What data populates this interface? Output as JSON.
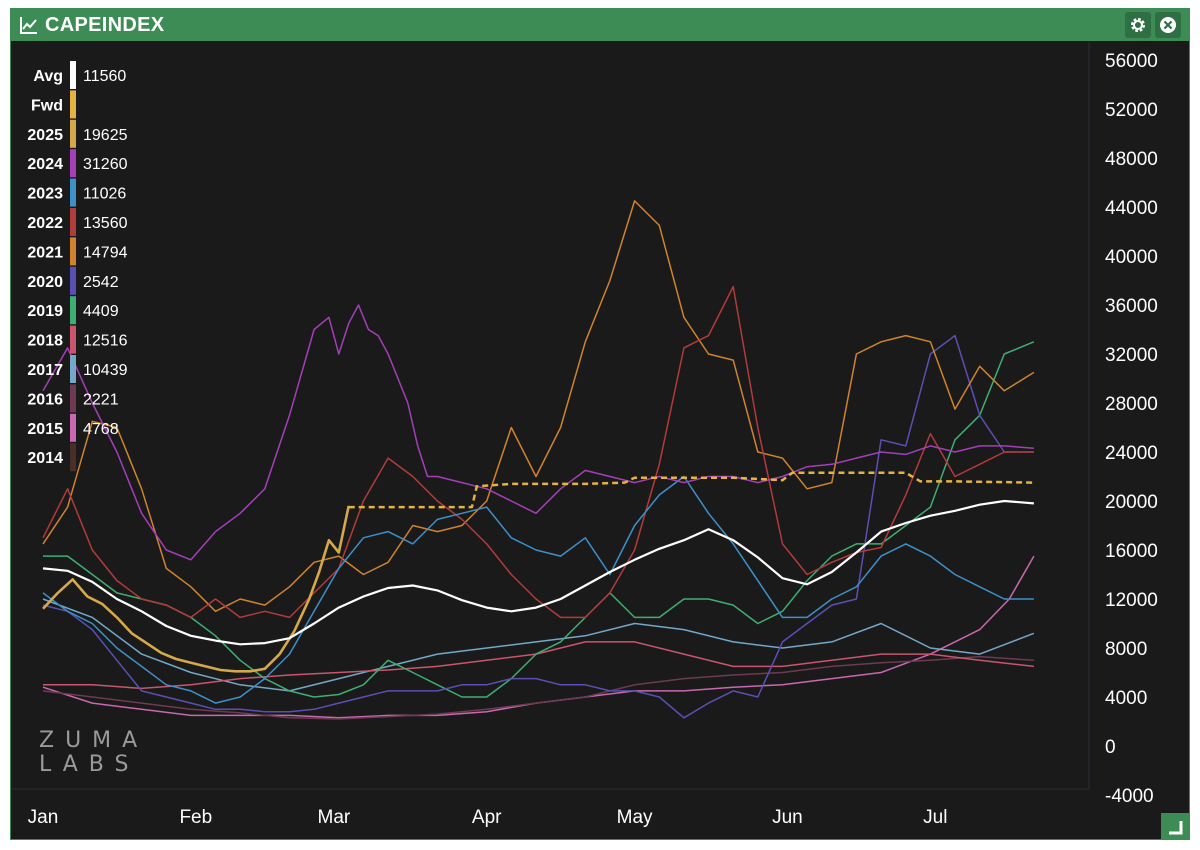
{
  "window": {
    "title": "CAPEINDEX",
    "brand_line1": "ZUMA",
    "brand_line2": "LABS",
    "accent_color": "#3d8c55",
    "icons": [
      "line-chart-icon",
      "gear-icon",
      "close-icon",
      "resize-grip-icon"
    ]
  },
  "chart_data": {
    "type": "line",
    "title": "",
    "xlabel": "",
    "ylabel": "",
    "ylim": [
      -4000,
      58000
    ],
    "y_ticks": [
      "56000",
      "52000",
      "48000",
      "44000",
      "40000",
      "36000",
      "32000",
      "28000",
      "24000",
      "20000",
      "16000",
      "12000",
      "8000",
      "4000",
      "0",
      "-4000"
    ],
    "y_tick_values": [
      56000,
      52000,
      48000,
      44000,
      40000,
      36000,
      32000,
      28000,
      24000,
      20000,
      16000,
      12000,
      8000,
      4000,
      0,
      -4000
    ],
    "x_ticks": [
      "Jan",
      "Feb",
      "Mar",
      "Apr",
      "May",
      "Jun",
      "Jul"
    ],
    "x_tick_days": [
      0,
      31,
      59,
      90,
      120,
      151,
      181
    ],
    "xlim_days": [
      0,
      201
    ],
    "grid": false,
    "legend_placement": "top-left",
    "series": [
      {
        "name": "Avg",
        "value": "11560",
        "color": "#ffffff",
        "width": 2.2,
        "x": [
          0,
          5,
          10,
          15,
          20,
          25,
          30,
          35,
          40,
          45,
          50,
          55,
          60,
          65,
          70,
          75,
          80,
          85,
          90,
          95,
          100,
          105,
          110,
          115,
          120,
          125,
          130,
          135,
          140,
          145,
          150,
          155,
          160,
          165,
          170,
          175,
          180,
          185,
          190,
          195,
          201
        ],
        "y": [
          14500,
          14300,
          13400,
          12000,
          11000,
          9800,
          9000,
          8600,
          8300,
          8400,
          8800,
          10000,
          11300,
          12200,
          12900,
          13100,
          12700,
          11900,
          11300,
          11000,
          11300,
          12000,
          13100,
          14200,
          15200,
          16100,
          16800,
          17700,
          16800,
          15400,
          13700,
          13200,
          14200,
          15800,
          17500,
          18200,
          18800,
          19200,
          19700,
          20000,
          19800
        ]
      },
      {
        "name": "Fwd",
        "value": "",
        "color": "#e6b340",
        "width": 2.5,
        "dashed": true,
        "x": [
          62,
          75,
          87,
          88,
          95,
          110,
          118,
          120,
          140,
          150,
          152,
          175,
          178,
          185,
          201
        ],
        "y": [
          19500,
          19500,
          19500,
          21200,
          21400,
          21400,
          21500,
          21900,
          21900,
          21700,
          22300,
          22300,
          21600,
          21600,
          21500
        ]
      },
      {
        "name": "2025",
        "value": "19625",
        "color": "#d5a84a",
        "width": 2.6,
        "x": [
          0,
          3,
          6,
          9,
          12,
          15,
          18,
          21,
          24,
          27,
          30,
          33,
          36,
          39,
          42,
          45,
          48,
          51,
          54,
          56,
          58,
          60,
          62
        ],
        "y": [
          11200,
          12500,
          13600,
          12200,
          11600,
          10500,
          9200,
          8400,
          7600,
          7100,
          6800,
          6500,
          6200,
          6100,
          6100,
          6300,
          7500,
          9400,
          12000,
          14200,
          16800,
          15800,
          19600
        ]
      },
      {
        "name": "2024",
        "value": "31260",
        "color": "#a43fb8",
        "width": 1.5,
        "x": [
          0,
          5,
          10,
          15,
          20,
          25,
          30,
          35,
          40,
          45,
          50,
          55,
          58,
          60,
          62,
          64,
          66,
          68,
          70,
          72,
          74,
          76,
          78,
          80,
          85,
          90,
          95,
          100,
          105,
          110,
          115,
          120,
          125,
          130,
          135,
          140,
          145,
          150,
          155,
          160,
          165,
          170,
          175,
          180,
          185,
          190,
          195,
          201
        ],
        "y": [
          29000,
          32500,
          28000,
          24000,
          19000,
          16000,
          15200,
          17500,
          19000,
          21000,
          27000,
          34000,
          35000,
          32000,
          34500,
          36000,
          34000,
          33500,
          32000,
          30000,
          28000,
          24500,
          22000,
          22000,
          21500,
          21000,
          20000,
          19000,
          21000,
          22500,
          22000,
          21500,
          22000,
          21500,
          22000,
          22000,
          21500,
          22000,
          22800,
          23000,
          23500,
          24000,
          23800,
          24500,
          24000,
          24500,
          24500,
          24300
        ]
      },
      {
        "name": "2023",
        "value": "11026",
        "color": "#3e90c9",
        "width": 1.5,
        "x": [
          0,
          5,
          10,
          15,
          20,
          25,
          30,
          35,
          40,
          45,
          50,
          55,
          60,
          65,
          70,
          75,
          80,
          85,
          90,
          95,
          100,
          105,
          110,
          115,
          120,
          125,
          130,
          135,
          140,
          145,
          150,
          155,
          160,
          165,
          170,
          175,
          180,
          185,
          190,
          195,
          201
        ],
        "y": [
          12500,
          11000,
          10000,
          8000,
          6500,
          5000,
          4500,
          3500,
          4000,
          5500,
          7500,
          11000,
          14500,
          17000,
          17500,
          16500,
          18500,
          19000,
          19500,
          17000,
          16000,
          15500,
          17000,
          14000,
          18000,
          20500,
          22000,
          19000,
          16500,
          13500,
          10500,
          10500,
          12000,
          13000,
          15500,
          16500,
          15500,
          14000,
          13000,
          12000,
          12000
        ]
      },
      {
        "name": "2022",
        "value": "13560",
        "color": "#b23b3b",
        "width": 1.5,
        "x": [
          0,
          5,
          10,
          15,
          20,
          25,
          30,
          35,
          40,
          45,
          50,
          55,
          60,
          65,
          70,
          75,
          80,
          85,
          90,
          95,
          100,
          105,
          110,
          115,
          120,
          125,
          130,
          135,
          140,
          145,
          150,
          155,
          160,
          165,
          170,
          175,
          180,
          185,
          190,
          195,
          201
        ],
        "y": [
          17000,
          21000,
          16000,
          13500,
          12000,
          11500,
          10500,
          12000,
          10500,
          11000,
          10500,
          12500,
          14500,
          20000,
          23500,
          22000,
          20000,
          18500,
          16500,
          14000,
          12000,
          10500,
          10500,
          12500,
          16000,
          23000,
          32500,
          33500,
          37500,
          26000,
          16500,
          14000,
          15000,
          15800,
          16200,
          20500,
          25500,
          22000,
          23000,
          24000,
          24000
        ]
      },
      {
        "name": "2021",
        "value": "14794",
        "color": "#d0832c",
        "width": 1.5,
        "x": [
          0,
          5,
          10,
          15,
          20,
          25,
          30,
          35,
          40,
          45,
          50,
          55,
          60,
          65,
          70,
          75,
          80,
          85,
          90,
          95,
          100,
          105,
          110,
          115,
          120,
          125,
          130,
          135,
          140,
          145,
          150,
          155,
          160,
          165,
          170,
          175,
          180,
          185,
          190,
          195,
          201
        ],
        "y": [
          16500,
          19500,
          26500,
          26000,
          21000,
          14500,
          13000,
          11000,
          12000,
          11500,
          13000,
          15000,
          15500,
          14000,
          15000,
          18000,
          17500,
          18000,
          20000,
          26000,
          22000,
          26000,
          33000,
          38000,
          44500,
          42500,
          35000,
          32000,
          31500,
          24000,
          23500,
          21000,
          21500,
          32000,
          33000,
          33500,
          33000,
          27500,
          31000,
          29000,
          30500
        ]
      },
      {
        "name": "2020",
        "value": "2542",
        "color": "#5b4fb3",
        "width": 1.5,
        "x": [
          0,
          5,
          10,
          15,
          20,
          25,
          30,
          35,
          40,
          45,
          50,
          55,
          60,
          65,
          70,
          75,
          80,
          85,
          90,
          95,
          100,
          105,
          110,
          115,
          120,
          125,
          130,
          135,
          140,
          145,
          150,
          155,
          160,
          165,
          170,
          175,
          180,
          185,
          190,
          195,
          201
        ],
        "y": [
          11500,
          11000,
          9500,
          7000,
          4500,
          4000,
          3500,
          3000,
          3000,
          2800,
          2800,
          3000,
          3500,
          4000,
          4500,
          4500,
          4500,
          5000,
          5000,
          5500,
          5500,
          5000,
          5000,
          4500,
          4500,
          4000,
          2300,
          3500,
          4500,
          4000,
          8500,
          10000,
          11500,
          12000,
          25000,
          24500,
          32000,
          33500,
          27000,
          24000,
          24000
        ]
      },
      {
        "name": "2019",
        "value": "4409",
        "color": "#3fae72",
        "width": 1.5,
        "x": [
          0,
          5,
          10,
          15,
          20,
          25,
          30,
          35,
          40,
          45,
          50,
          55,
          60,
          65,
          70,
          75,
          80,
          85,
          90,
          95,
          100,
          105,
          110,
          115,
          120,
          125,
          130,
          135,
          140,
          145,
          150,
          155,
          160,
          165,
          170,
          175,
          180,
          185,
          190,
          195,
          201
        ],
        "y": [
          15500,
          15500,
          14000,
          12500,
          12000,
          11500,
          10500,
          9000,
          7000,
          5500,
          4500,
          4000,
          4200,
          5000,
          7000,
          6000,
          5000,
          4000,
          4000,
          5500,
          7500,
          8500,
          10500,
          12500,
          10500,
          10500,
          12000,
          12000,
          11500,
          10000,
          11000,
          13500,
          15500,
          16500,
          16500,
          18000,
          19500,
          25000,
          27000,
          32000,
          33000
        ]
      },
      {
        "name": "2018",
        "value": "12516",
        "color": "#c9556f",
        "width": 1.5,
        "x": [
          0,
          10,
          20,
          30,
          40,
          50,
          60,
          70,
          80,
          90,
          100,
          110,
          120,
          130,
          140,
          150,
          160,
          170,
          180,
          190,
          201
        ],
        "y": [
          5000,
          5000,
          4700,
          5000,
          5500,
          5800,
          6000,
          6200,
          6500,
          7000,
          7500,
          8500,
          8500,
          7500,
          6500,
          6500,
          7000,
          7500,
          7500,
          7000,
          6500
        ]
      },
      {
        "name": "2017",
        "value": "10439",
        "color": "#73a8c9",
        "width": 1.5,
        "x": [
          0,
          10,
          20,
          30,
          40,
          50,
          60,
          70,
          80,
          90,
          100,
          110,
          120,
          130,
          140,
          150,
          160,
          170,
          180,
          190,
          201
        ],
        "y": [
          12000,
          10500,
          7500,
          6000,
          5000,
          4500,
          5500,
          6500,
          7500,
          8000,
          8500,
          9000,
          10000,
          9500,
          8500,
          8000,
          8500,
          10000,
          8000,
          7500,
          9200
        ]
      },
      {
        "name": "2016",
        "value": "2221",
        "color": "#6e3a52",
        "width": 1.5,
        "x": [
          0,
          10,
          20,
          30,
          40,
          50,
          60,
          70,
          80,
          90,
          100,
          110,
          120,
          130,
          140,
          150,
          160,
          170,
          180,
          190,
          201
        ],
        "y": [
          4500,
          4000,
          3500,
          3000,
          2700,
          2300,
          2200,
          2400,
          2600,
          3000,
          3500,
          4000,
          5000,
          5500,
          5800,
          6000,
          6500,
          6800,
          7000,
          7300,
          7000
        ]
      },
      {
        "name": "2015",
        "value": "4768",
        "color": "#c968b0",
        "width": 1.5,
        "x": [
          0,
          10,
          20,
          30,
          40,
          50,
          60,
          70,
          80,
          90,
          100,
          110,
          120,
          130,
          140,
          150,
          160,
          170,
          180,
          190,
          196,
          201
        ],
        "y": [
          4800,
          3500,
          3000,
          2500,
          2500,
          2500,
          2300,
          2500,
          2500,
          2800,
          3500,
          4000,
          4500,
          4500,
          4800,
          5000,
          5500,
          6000,
          7500,
          9500,
          12000,
          15500
        ]
      },
      {
        "name": "2014",
        "value": "",
        "color": "#4a2e28",
        "width": 1.5,
        "hidden": true,
        "x": [],
        "y": []
      }
    ]
  }
}
